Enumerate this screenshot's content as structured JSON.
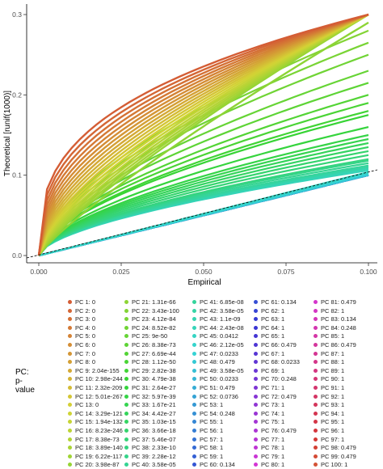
{
  "chart_data": {
    "type": "line",
    "xlabel": "Empirical",
    "ylabel": "Theoretical [runif(1000)]",
    "xlim": [
      0,
      0.1
    ],
    "ylim": [
      0,
      0.3
    ],
    "x_ticks": [
      "0.000",
      "0.025",
      "0.050",
      "0.075",
      "0.100"
    ],
    "y_ticks": [
      "0.0",
      "0.1",
      "0.2",
      "0.3"
    ],
    "reference_line": {
      "type": "identity",
      "style": "dashed",
      "color": "#000000"
    },
    "color_scale": [
      "#F8766D",
      "#7CAE00",
      "#00BFC4",
      "#C77CFF"
    ],
    "legend": {
      "title": "PC: p-value",
      "placement": "bottom",
      "entries": [
        {
          "name": "PC 1: 0"
        },
        {
          "name": "PC 2: 0"
        },
        {
          "name": "PC 3: 0"
        },
        {
          "name": "PC 4: 0"
        },
        {
          "name": "PC 5: 0"
        },
        {
          "name": "PC 6: 0"
        },
        {
          "name": "PC 7: 0"
        },
        {
          "name": "PC 8: 0"
        },
        {
          "name": "PC 9: 2.04e-155"
        },
        {
          "name": "PC 10: 2.98e-244"
        },
        {
          "name": "PC 11: 2.32e-209"
        },
        {
          "name": "PC 12: 5.01e-267"
        },
        {
          "name": "PC 13: 0"
        },
        {
          "name": "PC 14: 3.29e-121"
        },
        {
          "name": "PC 15: 1.94e-132"
        },
        {
          "name": "PC 16: 8.23e-246"
        },
        {
          "name": "PC 17: 8.38e-73"
        },
        {
          "name": "PC 18: 3.89e-140"
        },
        {
          "name": "PC 19: 6.22e-117"
        },
        {
          "name": "PC 20: 3.98e-87"
        },
        {
          "name": "PC 21: 1.31e-66"
        },
        {
          "name": "PC 22: 3.43e-100"
        },
        {
          "name": "PC 23: 4.12e-84"
        },
        {
          "name": "PC 24: 8.52e-82"
        },
        {
          "name": "PC 25: 9e-50"
        },
        {
          "name": "PC 26: 8.38e-73"
        },
        {
          "name": "PC 27: 6.69e-44"
        },
        {
          "name": "PC 28: 1.12e-50"
        },
        {
          "name": "PC 29: 2.82e-38"
        },
        {
          "name": "PC 30: 4.79e-38"
        },
        {
          "name": "PC 31: 2.64e-27"
        },
        {
          "name": "PC 32: 5.97e-39"
        },
        {
          "name": "PC 33: 1.67e-21"
        },
        {
          "name": "PC 34: 4.42e-27"
        },
        {
          "name": "PC 35: 1.03e-15"
        },
        {
          "name": "PC 36: 3.66e-18"
        },
        {
          "name": "PC 37: 5.46e-07"
        },
        {
          "name": "PC 38: 2.33e-10"
        },
        {
          "name": "PC 39: 2.28e-12"
        },
        {
          "name": "PC 40: 3.58e-05"
        },
        {
          "name": "PC 41: 6.85e-08"
        },
        {
          "name": "PC 42: 3.58e-05"
        },
        {
          "name": "PC 43: 1.1e-09"
        },
        {
          "name": "PC 44: 2.43e-08"
        },
        {
          "name": "PC 45: 0.0412"
        },
        {
          "name": "PC 46: 2.12e-05"
        },
        {
          "name": "PC 47: 0.0233"
        },
        {
          "name": "PC 48: 0.479"
        },
        {
          "name": "PC 49: 3.58e-05"
        },
        {
          "name": "PC 50: 0.0233"
        },
        {
          "name": "PC 51: 0.479"
        },
        {
          "name": "PC 52: 0.0736"
        },
        {
          "name": "PC 53: 1"
        },
        {
          "name": "PC 54: 0.248"
        },
        {
          "name": "PC 55: 1"
        },
        {
          "name": "PC 56: 1"
        },
        {
          "name": "PC 57: 1"
        },
        {
          "name": "PC 58: 1"
        },
        {
          "name": "PC 59: 1"
        },
        {
          "name": "PC 60: 0.134"
        },
        {
          "name": "PC 61: 0.134"
        },
        {
          "name": "PC 62: 1"
        },
        {
          "name": "PC 63: 1"
        },
        {
          "name": "PC 64: 1"
        },
        {
          "name": "PC 65: 1"
        },
        {
          "name": "PC 66: 0.479"
        },
        {
          "name": "PC 67: 1"
        },
        {
          "name": "PC 68: 0.0233"
        },
        {
          "name": "PC 69: 1"
        },
        {
          "name": "PC 70: 0.248"
        },
        {
          "name": "PC 71: 1"
        },
        {
          "name": "PC 72: 0.479"
        },
        {
          "name": "PC 73: 1"
        },
        {
          "name": "PC 74: 1"
        },
        {
          "name": "PC 75: 1"
        },
        {
          "name": "PC 76: 0.479"
        },
        {
          "name": "PC 77: 1"
        },
        {
          "name": "PC 78: 1"
        },
        {
          "name": "PC 79: 1"
        },
        {
          "name": "PC 80: 1"
        },
        {
          "name": "PC 81: 0.479"
        },
        {
          "name": "PC 82: 1"
        },
        {
          "name": "PC 83: 0.134"
        },
        {
          "name": "PC 84: 0.248"
        },
        {
          "name": "PC 85: 1"
        },
        {
          "name": "PC 86: 0.479"
        },
        {
          "name": "PC 87: 1"
        },
        {
          "name": "PC 88: 1"
        },
        {
          "name": "PC 89: 1"
        },
        {
          "name": "PC 90: 1"
        },
        {
          "name": "PC 91: 1"
        },
        {
          "name": "PC 92: 1"
        },
        {
          "name": "PC 93: 1"
        },
        {
          "name": "PC 94: 1"
        },
        {
          "name": "PC 95: 1"
        },
        {
          "name": "PC 96: 1"
        },
        {
          "name": "PC 97: 1"
        },
        {
          "name": "PC 98: 0.479"
        },
        {
          "name": "PC 99: 0.479"
        },
        {
          "name": "PC 100: 1"
        }
      ]
    },
    "series_note_values": {
      "end_y_at_x_0_1": [
        0.3,
        0.3,
        0.3,
        0.3,
        0.3,
        0.3,
        0.3,
        0.3,
        0.3,
        0.3,
        0.3,
        0.3,
        0.3,
        0.3,
        0.3,
        0.3,
        0.3,
        0.3,
        0.3,
        0.3,
        0.29,
        0.28,
        0.265,
        0.25,
        0.23,
        0.215,
        0.2,
        0.19,
        0.18,
        0.175,
        0.16,
        0.15,
        0.145,
        0.14,
        0.135,
        0.13,
        0.125,
        0.12,
        0.118,
        0.115,
        0.112,
        0.11,
        0.108,
        0.106,
        0.104,
        0.103,
        0.102,
        0.101,
        0.1,
        0.1,
        0.1,
        0.1,
        0.1,
        0.1,
        0.1,
        0.1,
        0.1,
        0.1,
        0.1,
        0.1,
        0.1,
        0.1,
        0.1,
        0.1,
        0.1,
        0.1,
        0.1,
        0.1,
        0.1,
        0.1,
        0.1,
        0.1,
        0.1,
        0.1,
        0.1,
        0.1,
        0.1,
        0.1,
        0.1,
        0.1,
        0.1,
        0.1,
        0.1,
        0.1,
        0.1,
        0.1,
        0.1,
        0.1,
        0.1,
        0.1,
        0.1,
        0.1,
        0.1,
        0.1,
        0.1,
        0.1,
        0.1,
        0.1,
        0.1,
        0.1
      ]
    }
  }
}
